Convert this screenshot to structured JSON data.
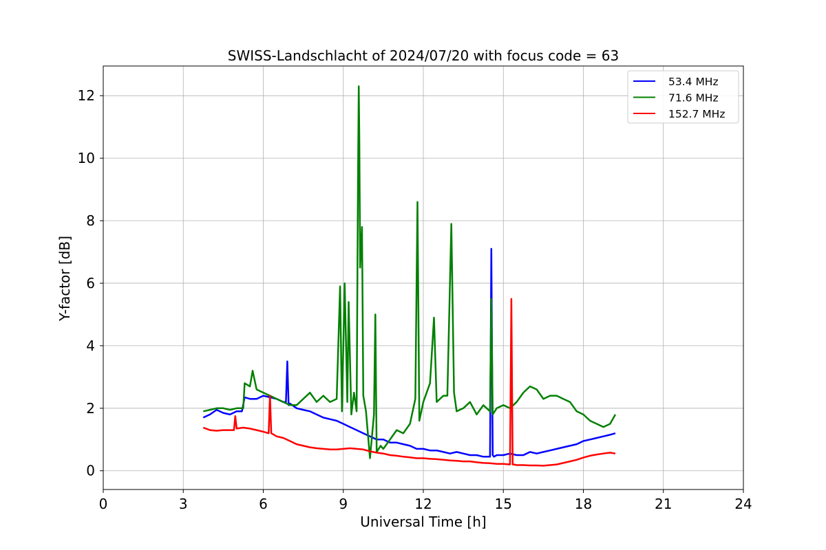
{
  "chart_data": {
    "type": "line",
    "title": "SWISS-Landschlacht of 2024/07/20 with focus code = 63",
    "xlabel": "Universal Time [h]",
    "ylabel": "Y-factor [dB]",
    "xlim": [
      0,
      24
    ],
    "ylim": [
      -0.6,
      12.95
    ],
    "xticks": [
      0,
      3,
      6,
      9,
      12,
      15,
      18,
      21,
      24
    ],
    "yticks": [
      0,
      2,
      4,
      6,
      8,
      10,
      12
    ],
    "grid": true,
    "legend_position": "top-right",
    "series": [
      {
        "name": " 53.4 MHz",
        "color": "#0000ff",
        "x": [
          3.75,
          4.0,
          4.25,
          4.5,
          4.75,
          5.0,
          5.2,
          5.3,
          5.5,
          5.75,
          6.0,
          6.25,
          6.5,
          6.75,
          6.85,
          6.9,
          6.95,
          7.0,
          7.25,
          7.5,
          7.75,
          8.0,
          8.25,
          8.5,
          8.75,
          9.0,
          9.25,
          9.5,
          9.75,
          10.0,
          10.25,
          10.5,
          10.75,
          11.0,
          11.25,
          11.5,
          11.75,
          12.0,
          12.25,
          12.5,
          12.75,
          13.0,
          13.25,
          13.5,
          13.75,
          14.0,
          14.25,
          14.5,
          14.55,
          14.6,
          14.65,
          14.75,
          15.0,
          15.25,
          15.5,
          15.75,
          16.0,
          16.25,
          16.5,
          16.75,
          17.0,
          17.25,
          17.5,
          17.75,
          18.0,
          18.25,
          18.5,
          18.75,
          19.0,
          19.2
        ],
        "y": [
          1.7,
          1.8,
          1.95,
          1.85,
          1.8,
          1.9,
          1.9,
          2.35,
          2.3,
          2.3,
          2.4,
          2.35,
          2.3,
          2.2,
          2.2,
          3.5,
          2.1,
          2.15,
          2.0,
          1.95,
          1.9,
          1.8,
          1.7,
          1.65,
          1.6,
          1.5,
          1.4,
          1.3,
          1.2,
          1.1,
          1.0,
          1.0,
          0.9,
          0.9,
          0.85,
          0.8,
          0.7,
          0.7,
          0.65,
          0.65,
          0.6,
          0.55,
          0.6,
          0.55,
          0.5,
          0.5,
          0.45,
          0.45,
          7.1,
          0.5,
          0.45,
          0.5,
          0.5,
          0.55,
          0.5,
          0.5,
          0.6,
          0.55,
          0.6,
          0.65,
          0.7,
          0.75,
          0.8,
          0.85,
          0.95,
          1.0,
          1.05,
          1.1,
          1.15,
          1.2
        ]
      },
      {
        "name": " 71.6 MHz",
        "color": "#008000",
        "x": [
          3.75,
          4.0,
          4.25,
          4.5,
          4.75,
          5.0,
          5.25,
          5.3,
          5.5,
          5.6,
          5.75,
          6.0,
          6.25,
          6.5,
          6.75,
          7.0,
          7.25,
          7.5,
          7.75,
          8.0,
          8.25,
          8.5,
          8.75,
          8.88,
          8.95,
          9.05,
          9.15,
          9.2,
          9.3,
          9.4,
          9.5,
          9.55,
          9.58,
          9.6,
          9.63,
          9.7,
          9.75,
          9.85,
          10.0,
          10.15,
          10.2,
          10.25,
          10.4,
          10.5,
          10.75,
          11.0,
          11.25,
          11.5,
          11.7,
          11.78,
          11.85,
          12.0,
          12.25,
          12.4,
          12.5,
          12.75,
          12.9,
          13.05,
          13.15,
          13.25,
          13.5,
          13.75,
          14.0,
          14.25,
          14.5,
          14.55,
          14.6,
          14.75,
          15.0,
          15.25,
          15.5,
          15.75,
          16.0,
          16.25,
          16.5,
          16.75,
          17.0,
          17.25,
          17.5,
          17.75,
          18.0,
          18.25,
          18.5,
          18.75,
          19.0,
          19.2
        ],
        "y": [
          1.9,
          1.95,
          2.0,
          2.0,
          1.95,
          2.0,
          2.0,
          2.8,
          2.7,
          3.2,
          2.6,
          2.5,
          2.4,
          2.3,
          2.2,
          2.1,
          2.1,
          2.3,
          2.5,
          2.2,
          2.4,
          2.2,
          2.3,
          5.9,
          1.9,
          6.0,
          2.2,
          5.4,
          1.8,
          2.5,
          1.9,
          9.3,
          12.3,
          10.7,
          6.5,
          7.8,
          2.4,
          1.9,
          0.4,
          1.8,
          5.0,
          0.6,
          0.8,
          0.7,
          1.0,
          1.3,
          1.2,
          1.5,
          2.3,
          8.6,
          1.6,
          2.2,
          2.8,
          4.9,
          2.2,
          2.4,
          2.4,
          7.9,
          2.5,
          1.9,
          2.0,
          2.2,
          1.8,
          2.1,
          1.9,
          5.5,
          1.8,
          2.0,
          2.1,
          2.0,
          2.2,
          2.5,
          2.7,
          2.6,
          2.3,
          2.4,
          2.4,
          2.3,
          2.2,
          1.9,
          1.8,
          1.6,
          1.5,
          1.4,
          1.5,
          1.8
        ]
      },
      {
        "name": "152.7 MHz",
        "color": "#ff0000",
        "x": [
          3.75,
          4.0,
          4.25,
          4.5,
          4.75,
          4.9,
          4.95,
          5.0,
          5.25,
          5.5,
          5.75,
          6.0,
          6.2,
          6.25,
          6.3,
          6.5,
          6.75,
          7.0,
          7.25,
          7.5,
          7.75,
          8.0,
          8.25,
          8.5,
          8.75,
          9.0,
          9.25,
          9.5,
          9.75,
          10.0,
          10.25,
          10.5,
          10.75,
          11.0,
          11.25,
          11.5,
          11.75,
          12.0,
          12.25,
          12.5,
          12.75,
          13.0,
          13.25,
          13.5,
          13.75,
          14.0,
          14.25,
          14.5,
          14.75,
          15.0,
          15.25,
          15.3,
          15.35,
          15.4,
          15.5,
          15.75,
          16.0,
          16.25,
          16.5,
          16.75,
          17.0,
          17.25,
          17.5,
          17.75,
          18.0,
          18.25,
          18.5,
          18.75,
          19.0,
          19.2
        ],
        "y": [
          1.38,
          1.3,
          1.28,
          1.3,
          1.3,
          1.3,
          1.75,
          1.35,
          1.38,
          1.35,
          1.3,
          1.25,
          1.2,
          2.4,
          1.2,
          1.1,
          1.05,
          0.95,
          0.85,
          0.8,
          0.75,
          0.72,
          0.7,
          0.68,
          0.68,
          0.7,
          0.72,
          0.7,
          0.68,
          0.62,
          0.58,
          0.55,
          0.5,
          0.48,
          0.45,
          0.43,
          0.4,
          0.4,
          0.38,
          0.37,
          0.35,
          0.33,
          0.32,
          0.3,
          0.3,
          0.27,
          0.25,
          0.24,
          0.22,
          0.22,
          0.2,
          5.5,
          0.2,
          0.2,
          0.18,
          0.18,
          0.17,
          0.17,
          0.16,
          0.18,
          0.2,
          0.25,
          0.3,
          0.35,
          0.42,
          0.48,
          0.52,
          0.55,
          0.58,
          0.55
        ]
      }
    ]
  }
}
